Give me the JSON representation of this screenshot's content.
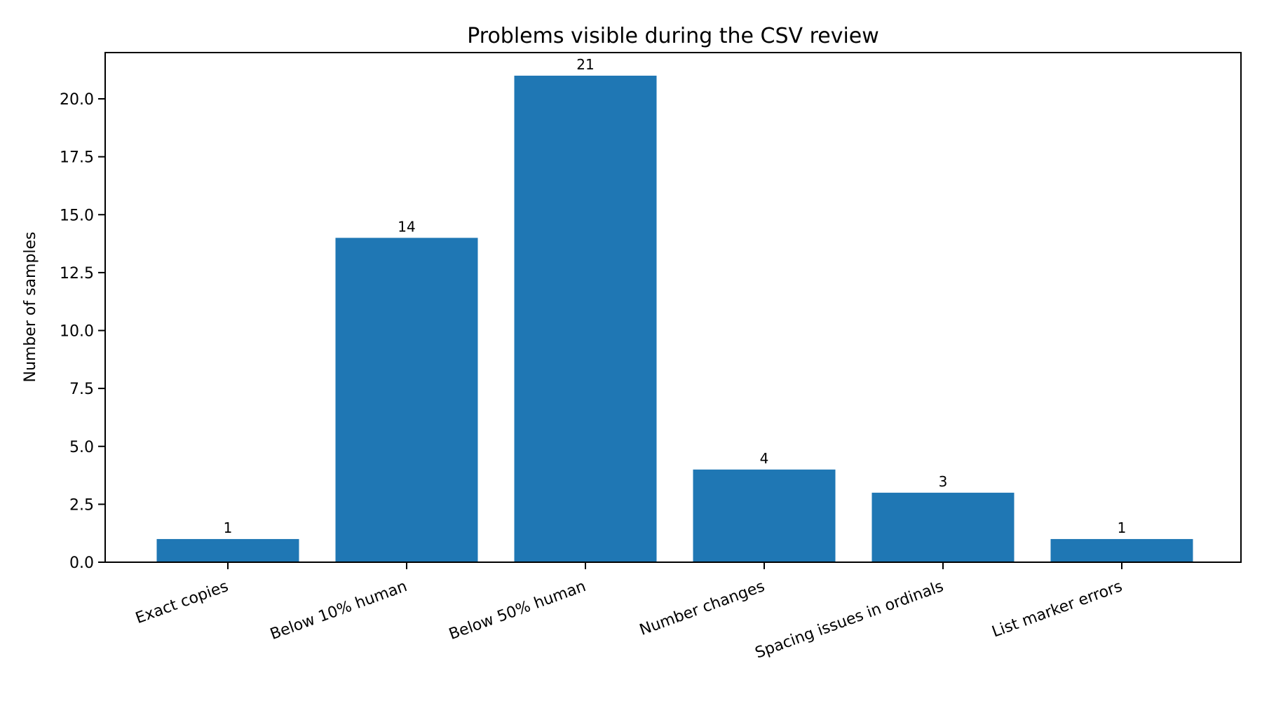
{
  "chart_data": {
    "type": "bar",
    "title": "Problems visible during the CSV review",
    "xlabel": "",
    "ylabel": "Number of samples",
    "categories": [
      "Exact copies",
      "Below 10% human",
      "Below 50% human",
      "Number changes",
      "Spacing issues in ordinals",
      "List marker errors"
    ],
    "values": [
      1,
      14,
      21,
      4,
      3,
      1
    ],
    "bar_labels": [
      "1",
      "14",
      "21",
      "4",
      "3",
      "1"
    ],
    "ylim": [
      0,
      22.05
    ],
    "yticks": [
      0.0,
      2.5,
      5.0,
      7.5,
      10.0,
      12.5,
      15.0,
      17.5,
      20.0
    ],
    "ytick_labels": [
      "0.0",
      "2.5",
      "5.0",
      "7.5",
      "10.0",
      "12.5",
      "15.0",
      "17.5",
      "20.0"
    ],
    "xtick_rotation": -20,
    "grid": false,
    "legend": null,
    "bar_color": "#1f77b4"
  }
}
